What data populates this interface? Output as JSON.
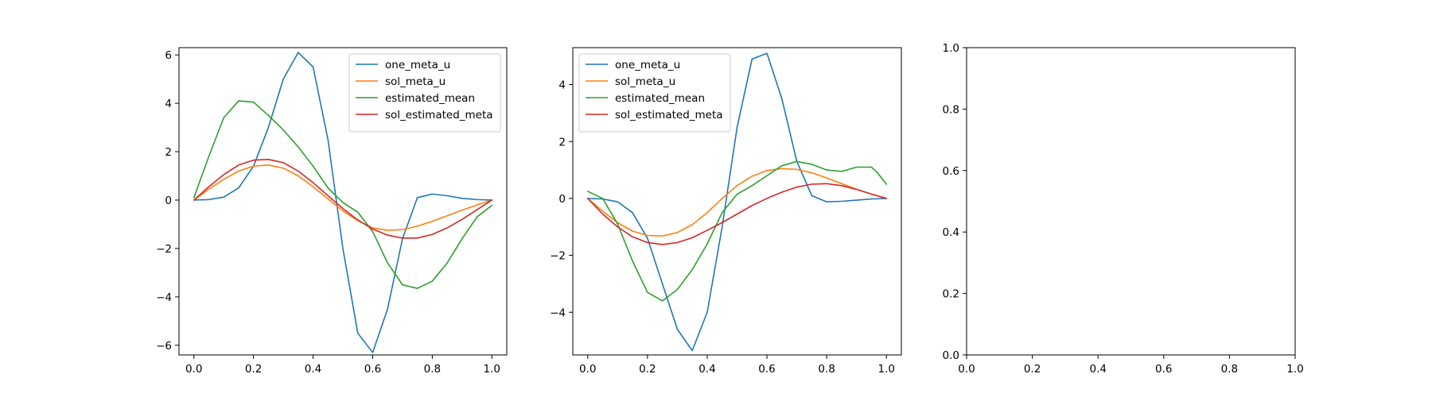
{
  "chart_data": [
    {
      "type": "line",
      "xlim": [
        -0.05,
        1.05
      ],
      "ylim": [
        -6.4,
        6.3
      ],
      "xticks": [
        0.0,
        0.2,
        0.4,
        0.6,
        0.8,
        1.0
      ],
      "xtick_labels": [
        "0.0",
        "0.2",
        "0.4",
        "0.6",
        "0.8",
        "1.0"
      ],
      "yticks": [
        -6,
        -4,
        -2,
        0,
        2,
        4,
        6
      ],
      "ytick_labels": [
        "−6",
        "−4",
        "−2",
        "0",
        "2",
        "4",
        "6"
      ],
      "legend_position": "upper right",
      "series": [
        {
          "name": "one_meta_u",
          "color": "#1f77b4",
          "x": [
            0,
            0.05,
            0.1,
            0.15,
            0.2,
            0.25,
            0.3,
            0.35,
            0.4,
            0.45,
            0.5,
            0.55,
            0.6,
            0.65,
            0.7,
            0.75,
            0.8,
            0.85,
            0.9,
            0.95,
            1.0
          ],
          "y": [
            0,
            0.02,
            0.12,
            0.5,
            1.4,
            3.0,
            5.0,
            6.1,
            5.5,
            2.5,
            -2.0,
            -5.5,
            -6.3,
            -4.5,
            -1.6,
            0.1,
            0.25,
            0.18,
            0.07,
            0.02,
            0
          ]
        },
        {
          "name": "sol_meta_u",
          "color": "#ff7f0e",
          "x": [
            0,
            0.05,
            0.1,
            0.15,
            0.2,
            0.25,
            0.3,
            0.35,
            0.4,
            0.45,
            0.5,
            0.55,
            0.6,
            0.65,
            0.7,
            0.75,
            0.8,
            0.85,
            0.9,
            0.95,
            1.0
          ],
          "y": [
            0,
            0.45,
            0.85,
            1.2,
            1.4,
            1.45,
            1.32,
            1.0,
            0.55,
            0.05,
            -0.45,
            -0.85,
            -1.15,
            -1.25,
            -1.22,
            -1.08,
            -0.88,
            -0.65,
            -0.42,
            -0.2,
            0
          ]
        },
        {
          "name": "estimated_mean",
          "color": "#2ca02c",
          "x": [
            0,
            0.05,
            0.1,
            0.15,
            0.2,
            0.25,
            0.3,
            0.35,
            0.4,
            0.45,
            0.5,
            0.55,
            0.6,
            0.65,
            0.7,
            0.75,
            0.8,
            0.85,
            0.9,
            0.95,
            1.0
          ],
          "y": [
            0.1,
            1.8,
            3.4,
            4.1,
            4.05,
            3.5,
            2.9,
            2.2,
            1.4,
            0.5,
            -0.1,
            -0.5,
            -1.3,
            -2.6,
            -3.5,
            -3.65,
            -3.35,
            -2.6,
            -1.6,
            -0.7,
            -0.22
          ]
        },
        {
          "name": "sol_estimated_meta",
          "color": "#d62728",
          "x": [
            0,
            0.05,
            0.1,
            0.15,
            0.2,
            0.25,
            0.3,
            0.35,
            0.4,
            0.45,
            0.5,
            0.55,
            0.6,
            0.65,
            0.7,
            0.75,
            0.8,
            0.85,
            0.9,
            0.95,
            1.0
          ],
          "y": [
            0,
            0.55,
            1.05,
            1.45,
            1.65,
            1.68,
            1.55,
            1.2,
            0.72,
            0.18,
            -0.35,
            -0.82,
            -1.2,
            -1.45,
            -1.57,
            -1.57,
            -1.42,
            -1.15,
            -0.8,
            -0.4,
            0
          ]
        }
      ]
    },
    {
      "type": "line",
      "xlim": [
        -0.05,
        1.05
      ],
      "ylim": [
        -5.5,
        5.3
      ],
      "xticks": [
        0.0,
        0.2,
        0.4,
        0.6,
        0.8,
        1.0
      ],
      "xtick_labels": [
        "0.0",
        "0.2",
        "0.4",
        "0.6",
        "0.8",
        "1.0"
      ],
      "yticks": [
        -4,
        -2,
        0,
        2,
        4
      ],
      "ytick_labels": [
        "−4",
        "−2",
        "0",
        "2",
        "4"
      ],
      "legend_position": "upper left",
      "series": [
        {
          "name": "one_meta_u",
          "color": "#1f77b4",
          "x": [
            0,
            0.05,
            0.1,
            0.15,
            0.2,
            0.25,
            0.3,
            0.35,
            0.4,
            0.45,
            0.5,
            0.55,
            0.6,
            0.65,
            0.7,
            0.75,
            0.8,
            0.85,
            0.9,
            0.95,
            1.0
          ],
          "y": [
            0,
            -0.02,
            -0.12,
            -0.5,
            -1.4,
            -3.0,
            -4.6,
            -5.35,
            -4.0,
            -1.0,
            2.5,
            4.9,
            5.1,
            3.5,
            1.3,
            0.1,
            -0.12,
            -0.1,
            -0.06,
            -0.02,
            0
          ]
        },
        {
          "name": "sol_meta_u",
          "color": "#ff7f0e",
          "x": [
            0,
            0.05,
            0.1,
            0.15,
            0.2,
            0.25,
            0.3,
            0.35,
            0.4,
            0.45,
            0.5,
            0.55,
            0.6,
            0.65,
            0.7,
            0.75,
            0.8,
            0.85,
            0.9,
            0.95,
            1.0
          ],
          "y": [
            0,
            -0.45,
            -0.85,
            -1.15,
            -1.3,
            -1.32,
            -1.2,
            -0.92,
            -0.5,
            0.0,
            0.45,
            0.78,
            0.98,
            1.05,
            1.02,
            0.9,
            0.72,
            0.52,
            0.32,
            0.15,
            0
          ]
        },
        {
          "name": "estimated_mean",
          "color": "#2ca02c",
          "x": [
            0,
            0.05,
            0.1,
            0.15,
            0.2,
            0.25,
            0.3,
            0.35,
            0.4,
            0.45,
            0.5,
            0.55,
            0.6,
            0.65,
            0.7,
            0.75,
            0.8,
            0.85,
            0.9,
            0.95,
            0.97,
            1.0
          ],
          "y": [
            0.25,
            0.0,
            -0.9,
            -2.2,
            -3.3,
            -3.6,
            -3.2,
            -2.5,
            -1.6,
            -0.5,
            0.15,
            0.45,
            0.8,
            1.15,
            1.3,
            1.2,
            1.0,
            0.95,
            1.1,
            1.1,
            0.9,
            0.5
          ]
        },
        {
          "name": "sol_estimated_meta",
          "color": "#d62728",
          "x": [
            0,
            0.05,
            0.1,
            0.15,
            0.2,
            0.25,
            0.3,
            0.35,
            0.4,
            0.45,
            0.5,
            0.55,
            0.6,
            0.65,
            0.7,
            0.75,
            0.8,
            0.85,
            0.9,
            0.95,
            1.0
          ],
          "y": [
            0,
            -0.55,
            -1.0,
            -1.35,
            -1.55,
            -1.62,
            -1.55,
            -1.38,
            -1.12,
            -0.85,
            -0.55,
            -0.25,
            0.0,
            0.22,
            0.4,
            0.5,
            0.52,
            0.45,
            0.32,
            0.15,
            0
          ]
        }
      ]
    },
    {
      "type": "line",
      "xlim": [
        0.0,
        1.0
      ],
      "ylim": [
        0.0,
        1.0
      ],
      "xticks": [
        0.0,
        0.2,
        0.4,
        0.6,
        0.8,
        1.0
      ],
      "xtick_labels": [
        "0.0",
        "0.2",
        "0.4",
        "0.6",
        "0.8",
        "1.0"
      ],
      "yticks": [
        0.0,
        0.2,
        0.4,
        0.6,
        0.8,
        1.0
      ],
      "ytick_labels": [
        "0.0",
        "0.2",
        "0.4",
        "0.6",
        "0.8",
        "1.0"
      ],
      "series": []
    }
  ]
}
